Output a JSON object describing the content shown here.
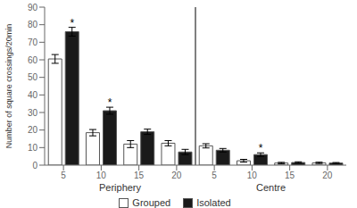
{
  "chart_data": {
    "type": "bar",
    "categories": [
      "5",
      "10",
      "15",
      "20",
      "5",
      "10",
      "15",
      "20"
    ],
    "series": [
      {
        "name": "Grouped",
        "color": "#ffffff",
        "values": [
          60.5,
          18.5,
          12.0,
          12.5,
          11.0,
          2.5,
          1.2,
          1.3
        ],
        "errors": [
          2.5,
          1.8,
          2.0,
          1.5,
          1.2,
          0.8,
          0.4,
          0.4
        ]
      },
      {
        "name": "Isolated",
        "color": "#1a1a1a",
        "values": [
          76.0,
          31.0,
          19.0,
          7.5,
          8.5,
          6.0,
          1.5,
          1.2
        ],
        "errors": [
          2.5,
          2.0,
          1.5,
          1.5,
          1.0,
          1.0,
          0.4,
          0.3
        ]
      }
    ],
    "ylabel": "Number of square crossings/20min",
    "ylim": [
      0,
      90
    ],
    "yticks": [
      0,
      10,
      20,
      30,
      40,
      50,
      60,
      70,
      80,
      90
    ],
    "annotations": [
      {
        "text": "*",
        "series": "Isolated",
        "index": 0
      },
      {
        "text": "*",
        "series": "Isolated",
        "index": 1
      },
      {
        "text": "*",
        "series": "Isolated",
        "index": 5
      }
    ],
    "sections": [
      {
        "label": "Periphery",
        "first": 0,
        "last": 3
      },
      {
        "label": "Centre",
        "first": 4,
        "last": 7
      }
    ],
    "legend": "bottom",
    "grid": false
  }
}
